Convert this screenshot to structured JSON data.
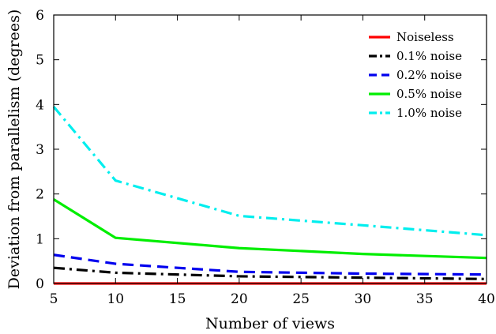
{
  "chart_data": {
    "type": "line",
    "xlabel": "Number of views",
    "ylabel": "Deviation from parallelism (degrees)",
    "xlim": [
      5,
      40
    ],
    "ylim": [
      0,
      6
    ],
    "x_ticks": [
      5,
      10,
      15,
      20,
      25,
      30,
      35,
      40
    ],
    "y_ticks": [
      0,
      1,
      2,
      3,
      4,
      5,
      6
    ],
    "grid": false,
    "legend_position": "top-right",
    "x": [
      5,
      10,
      20,
      30,
      40
    ],
    "series": [
      {
        "name": "Noiseless",
        "color": "#ff0000",
        "dash": "solid",
        "values": [
          0,
          0,
          0,
          0,
          0
        ]
      },
      {
        "name": "0.1% noise",
        "color": "#000000",
        "dash": "dashdot",
        "values": [
          0.35,
          0.24,
          0.16,
          0.13,
          0.1
        ]
      },
      {
        "name": "0.2% noise",
        "color": "#0000ee",
        "dash": "dashed",
        "values": [
          0.64,
          0.44,
          0.26,
          0.22,
          0.2
        ]
      },
      {
        "name": "0.5% noise",
        "color": "#00ee00",
        "dash": "solid",
        "values": [
          1.88,
          1.02,
          0.79,
          0.66,
          0.57
        ]
      },
      {
        "name": "1.0% noise",
        "color": "#00eeee",
        "dash": "dashdot",
        "values": [
          3.95,
          2.3,
          1.51,
          1.3,
          1.08
        ]
      }
    ]
  }
}
